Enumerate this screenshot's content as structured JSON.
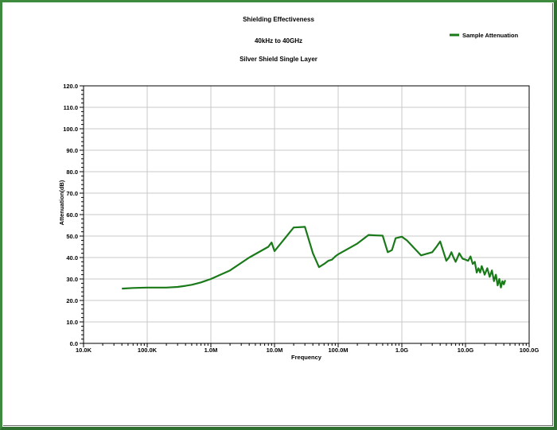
{
  "chart_data": {
    "type": "line",
    "title": "Shielding Effectiveness",
    "subtitles": [
      "40kHz to 40GHz",
      "Silver Shield Single Layer"
    ],
    "xlabel": "Frequency",
    "ylabel": "Attenuation(dB)",
    "x_scale": "log",
    "xlim": [
      10000,
      100000000000
    ],
    "ylim": [
      0,
      120
    ],
    "x_ticks": [
      {
        "value": 10000,
        "label": "10.0K"
      },
      {
        "value": 100000,
        "label": "100.0K"
      },
      {
        "value": 1000000,
        "label": "1.0M"
      },
      {
        "value": 10000000,
        "label": "10.0M"
      },
      {
        "value": 100000000,
        "label": "100.0M"
      },
      {
        "value": 1000000000,
        "label": "1.0G"
      },
      {
        "value": 10000000000,
        "label": "10.0G"
      },
      {
        "value": 100000000000,
        "label": "100.0G"
      }
    ],
    "y_ticks": [
      {
        "value": 0,
        "label": "0.0"
      },
      {
        "value": 10,
        "label": "10.0"
      },
      {
        "value": 20,
        "label": "20.0"
      },
      {
        "value": 30,
        "label": "30.0"
      },
      {
        "value": 40,
        "label": "40.0"
      },
      {
        "value": 50,
        "label": "50.0"
      },
      {
        "value": 60,
        "label": "60.0"
      },
      {
        "value": 70,
        "label": "70.0"
      },
      {
        "value": 80,
        "label": "80.0"
      },
      {
        "value": 90,
        "label": "90.0"
      },
      {
        "value": 100,
        "label": "100.0"
      },
      {
        "value": 110,
        "label": "110.0"
      },
      {
        "value": 120,
        "label": "120.0"
      }
    ],
    "grid": true,
    "minor_ticks": true,
    "legend_position": "top-right",
    "series": [
      {
        "name": "Sample Attenuation",
        "color": "#1a7a1a",
        "x": [
          40000,
          60000,
          100000,
          200000,
          300000,
          400000,
          500000,
          600000,
          700000,
          800000,
          1000000,
          2000000,
          4000000,
          8000000,
          9000000,
          10000000,
          20000000,
          30000000,
          40000000,
          50000000,
          60000000,
          70000000,
          80000000,
          90000000,
          100000000,
          200000000,
          300000000,
          400000000,
          500000000,
          600000000,
          700000000,
          800000000,
          1000000000,
          1200000000,
          2000000000,
          3000000000,
          3500000000,
          4000000000,
          5000000000,
          5500000000,
          6000000000,
          6500000000,
          7000000000,
          7500000000,
          8000000000,
          9000000000,
          10000000000,
          11000000000,
          12000000000,
          13000000000,
          14000000000,
          15000000000,
          16000000000,
          17000000000,
          18000000000,
          19000000000,
          20000000000,
          22000000000,
          24000000000,
          26000000000,
          28000000000,
          30000000000,
          32000000000,
          34000000000,
          36000000000,
          38000000000,
          40000000000,
          42000000000
        ],
        "y": [
          25.5,
          25.8,
          26,
          26,
          26.3,
          26.8,
          27.3,
          27.9,
          28.4,
          29,
          30,
          34,
          40,
          45,
          47,
          43,
          54,
          54.3,
          42,
          35.5,
          37,
          38.5,
          39,
          40.5,
          41.5,
          46.5,
          50.5,
          50.3,
          50.2,
          42.5,
          43.5,
          49,
          49.7,
          48,
          41,
          42.5,
          45,
          47.5,
          38.5,
          40,
          42.5,
          40,
          38,
          40,
          42,
          39.5,
          39,
          38.5,
          40.5,
          37,
          38,
          33,
          35,
          33,
          36,
          34,
          32,
          35,
          31,
          34,
          29,
          32,
          27,
          30,
          26,
          29,
          27.5,
          29.5
        ]
      }
    ]
  }
}
